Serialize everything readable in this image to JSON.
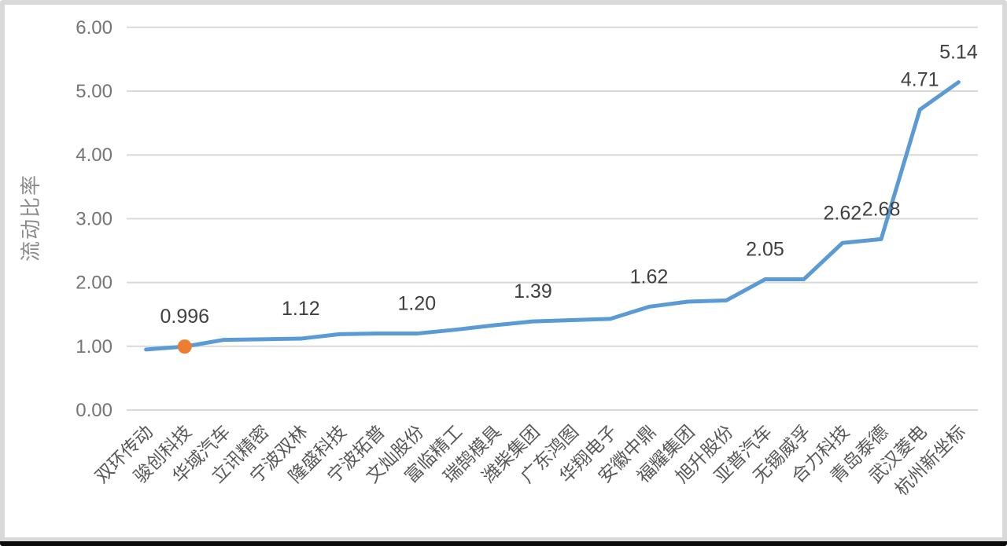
{
  "chart_data": {
    "type": "line",
    "title": "",
    "xlabel": "",
    "ylabel": "流动比率",
    "categories": [
      "双环传动",
      "骏创科技",
      "华域汽车",
      "立讯精密",
      "宁波双林",
      "隆盛科技",
      "宁波拓普",
      "文灿股份",
      "富临精工",
      "瑞鹄模具",
      "潍柴集团",
      "广东鸿图",
      "华翔电子",
      "安徽中鼎",
      "福耀集团",
      "旭升股份",
      "亚普汽车",
      "无锡威孚",
      "合力科技",
      "青岛泰德",
      "武汉菱电",
      "杭州新坐标"
    ],
    "values": [
      0.95,
      0.996,
      1.1,
      1.11,
      1.12,
      1.19,
      1.2,
      1.2,
      1.26,
      1.33,
      1.39,
      1.41,
      1.43,
      1.62,
      1.7,
      1.72,
      2.05,
      2.05,
      2.62,
      2.68,
      4.71,
      5.14
    ],
    "data_labels": {
      "1": "0.996",
      "4": "1.12",
      "7": "1.20",
      "10": "1.39",
      "13": "1.62",
      "16": "2.05",
      "18": "2.62",
      "19": "2.68",
      "20": "4.71",
      "21": "5.14"
    },
    "highlight_marker": {
      "index": 1,
      "color": "#ED7D31"
    },
    "ylim": [
      0,
      6
    ],
    "yticks": [
      0,
      1,
      2,
      3,
      4,
      5,
      6
    ],
    "ytick_labels": [
      "0.00",
      "1.00",
      "2.00",
      "3.00",
      "4.00",
      "5.00",
      "6.00"
    ],
    "grid": true,
    "legend_position": "none",
    "line_color": "#5B9BD5",
    "grid_color": "#D9D9D9",
    "tick_color": "#757575",
    "axis_title_color": "#8C8C8C",
    "category_label_color": "#595959",
    "data_label_color": "#404040"
  }
}
